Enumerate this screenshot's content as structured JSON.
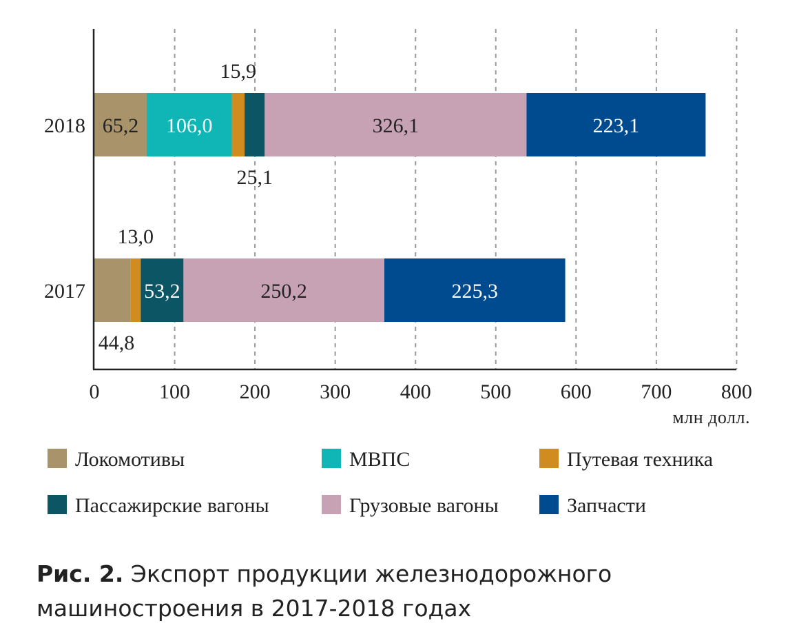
{
  "chart_data": {
    "type": "bar",
    "orientation": "horizontal",
    "stacked": true,
    "categories": [
      "2018",
      "2017"
    ],
    "series": [
      {
        "name": "Локомотивы",
        "color": "#a8936a",
        "values": [
          65.2,
          44.8
        ]
      },
      {
        "name": "МВПС",
        "color": "#10b5b5",
        "values": [
          106.0,
          0
        ]
      },
      {
        "name": "Путевая техника",
        "color": "#d08c1e",
        "values": [
          15.9,
          13.0
        ]
      },
      {
        "name": "Пассажирские вагоны",
        "color": "#0b5565",
        "values": [
          25.1,
          53.2
        ]
      },
      {
        "name": "Грузовые вагоны",
        "color": "#c6a2b4",
        "values": [
          326.1,
          250.2
        ]
      },
      {
        "name": "Запчасти",
        "color": "#004a8f",
        "values": [
          223.1,
          225.3
        ]
      }
    ],
    "data_labels": {
      "2018": [
        "65,2",
        "106,0",
        "15,9",
        "25,1",
        "326,1",
        "223,1"
      ],
      "2017": [
        "44,8",
        "",
        "13,0",
        "53,2",
        "250,2",
        "225,3"
      ]
    },
    "xlim": [
      0,
      800
    ],
    "xticks": [
      0,
      100,
      200,
      300,
      400,
      500,
      600,
      700,
      800
    ],
    "xtick_labels": [
      "0",
      "100",
      "200",
      "300",
      "400",
      "500",
      "600",
      "700",
      "800"
    ],
    "xlabel": "млн долл.",
    "grid": "vertical dashed",
    "legend_position": "bottom"
  },
  "caption": {
    "label": "Рис. 2.",
    "text": "Экспорт продукции железнодорожного машиностроения в 2017-2018 годах"
  }
}
